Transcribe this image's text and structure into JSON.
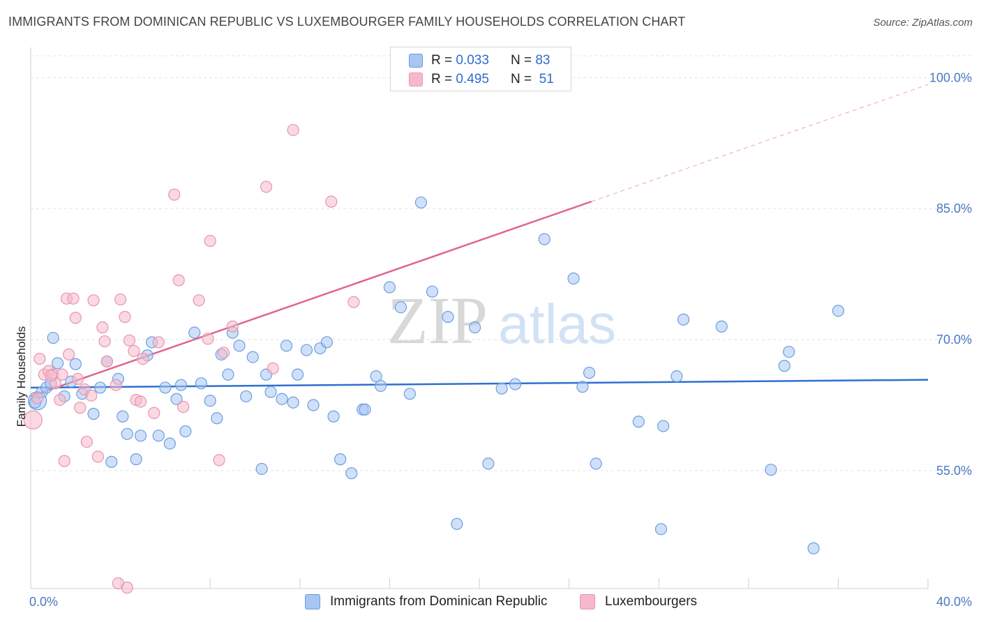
{
  "header": {
    "title": "IMMIGRANTS FROM DOMINICAN REPUBLIC VS LUXEMBOURGER FAMILY HOUSEHOLDS CORRELATION CHART",
    "source": "Source: ZipAtlas.com"
  },
  "watermark": {
    "zip": "ZIP",
    "atlas": "atlas"
  },
  "legend": {
    "rows": [
      {
        "r_label": "R =",
        "r_value": "0.033",
        "n_label": "N =",
        "n_value": "83",
        "color": "#a7c6f2"
      },
      {
        "r_label": "R =",
        "r_value": "0.495",
        "n_label": "N =",
        "n_value": "51",
        "color": "#f6b9cb"
      }
    ]
  },
  "bottom_legend": {
    "series1": "Immigrants from Dominican Republic",
    "series2": "Luxembourgers"
  },
  "colors": {
    "blue_fill": "#a7c6f2",
    "blue_stroke": "#6b9ee0",
    "blue_line": "#2e6fd1",
    "pink_fill": "#f6b9cb",
    "pink_stroke": "#e993ad",
    "pink_line": "#e0648f",
    "tick_color": "#4a78c2",
    "grid": "#e3e3e3"
  },
  "chart_data": {
    "type": "scatter",
    "title": "IMMIGRANTS FROM DOMINICAN REPUBLIC VS LUXEMBOURGER FAMILY HOUSEHOLDS CORRELATION CHART",
    "xlabel": "",
    "ylabel": "Family Households",
    "xlim": [
      0,
      40
    ],
    "ylim": [
      41.5,
      102.5
    ],
    "x_tick_labels": [
      "0.0%",
      "40.0%"
    ],
    "y_ticks": [
      55,
      70,
      85,
      100
    ],
    "y_tick_labels": [
      "55.0%",
      "70.0%",
      "85.0%",
      "100.0%"
    ],
    "grid": true,
    "series": [
      {
        "name": "Immigrants from Dominican Republic",
        "R": 0.033,
        "N": 83,
        "trend": {
          "x0": 0,
          "y0": 64.5,
          "x1": 40,
          "y1": 65.4,
          "dashed_from": null
        },
        "points": [
          [
            0.3,
            63.0
          ],
          [
            0.5,
            64.0
          ],
          [
            0.7,
            64.5
          ],
          [
            0.9,
            65.0
          ],
          [
            1.2,
            67.3
          ],
          [
            1.5,
            63.5
          ],
          [
            1.8,
            65.2
          ],
          [
            2.0,
            67.2
          ],
          [
            2.3,
            63.8
          ],
          [
            2.8,
            61.5
          ],
          [
            3.1,
            64.5
          ],
          [
            3.4,
            67.5
          ],
          [
            3.6,
            56.0
          ],
          [
            3.9,
            65.5
          ],
          [
            4.1,
            61.2
          ],
          [
            4.3,
            59.2
          ],
          [
            4.7,
            56.3
          ],
          [
            4.9,
            59.0
          ],
          [
            5.2,
            68.2
          ],
          [
            5.4,
            69.7
          ],
          [
            5.7,
            59.0
          ],
          [
            6.0,
            64.5
          ],
          [
            6.2,
            58.1
          ],
          [
            6.5,
            63.2
          ],
          [
            6.7,
            64.8
          ],
          [
            6.9,
            59.5
          ],
          [
            7.3,
            70.8
          ],
          [
            7.6,
            65.0
          ],
          [
            8.0,
            63.0
          ],
          [
            8.3,
            61.0
          ],
          [
            8.5,
            68.3
          ],
          [
            8.8,
            66.0
          ],
          [
            9.0,
            70.8
          ],
          [
            9.3,
            69.3
          ],
          [
            9.6,
            63.5
          ],
          [
            9.9,
            68.0
          ],
          [
            10.3,
            55.2
          ],
          [
            10.5,
            66.0
          ],
          [
            10.7,
            64.0
          ],
          [
            11.2,
            63.2
          ],
          [
            11.4,
            69.3
          ],
          [
            11.7,
            62.8
          ],
          [
            11.9,
            66.0
          ],
          [
            12.3,
            68.8
          ],
          [
            12.6,
            62.5
          ],
          [
            12.9,
            69.0
          ],
          [
            13.2,
            69.7
          ],
          [
            13.5,
            61.2
          ],
          [
            13.8,
            56.3
          ],
          [
            14.3,
            54.7
          ],
          [
            14.8,
            62.0
          ],
          [
            14.9,
            62.0
          ],
          [
            15.4,
            65.8
          ],
          [
            15.6,
            64.7
          ],
          [
            16.0,
            76.0
          ],
          [
            16.5,
            73.7
          ],
          [
            16.9,
            63.8
          ],
          [
            17.4,
            85.7
          ],
          [
            17.9,
            75.5
          ],
          [
            18.6,
            72.6
          ],
          [
            19.0,
            48.9
          ],
          [
            19.8,
            71.4
          ],
          [
            20.4,
            55.8
          ],
          [
            21.0,
            64.4
          ],
          [
            21.6,
            64.9
          ],
          [
            22.9,
            81.5
          ],
          [
            24.2,
            77.0
          ],
          [
            24.6,
            64.6
          ],
          [
            24.9,
            66.2
          ],
          [
            25.2,
            55.8
          ],
          [
            27.1,
            60.6
          ],
          [
            28.1,
            48.3
          ],
          [
            28.2,
            60.1
          ],
          [
            28.8,
            65.8
          ],
          [
            29.1,
            72.3
          ],
          [
            30.8,
            71.5
          ],
          [
            33.0,
            55.1
          ],
          [
            33.6,
            67.0
          ],
          [
            33.8,
            68.6
          ],
          [
            34.9,
            46.1
          ],
          [
            36.0,
            73.3
          ],
          [
            0.2,
            62.8
          ],
          [
            1.0,
            70.2
          ]
        ]
      },
      {
        "name": "Luxembourgers",
        "R": 0.495,
        "N": 51,
        "trend": {
          "x0": 0,
          "y0": 63.5,
          "x1": 40,
          "y1": 99.2,
          "dashed_from": 25.0
        },
        "points": [
          [
            0.1,
            60.8
          ],
          [
            0.3,
            63.3
          ],
          [
            0.4,
            67.8
          ],
          [
            0.6,
            66.0
          ],
          [
            0.8,
            66.4
          ],
          [
            1.0,
            66.0
          ],
          [
            1.1,
            65.0
          ],
          [
            1.3,
            63.1
          ],
          [
            1.5,
            56.1
          ],
          [
            1.6,
            74.7
          ],
          [
            1.7,
            68.3
          ],
          [
            1.9,
            74.7
          ],
          [
            2.0,
            72.5
          ],
          [
            2.2,
            62.2
          ],
          [
            2.4,
            64.3
          ],
          [
            2.5,
            58.3
          ],
          [
            2.7,
            63.6
          ],
          [
            2.8,
            74.5
          ],
          [
            3.0,
            56.6
          ],
          [
            3.2,
            71.4
          ],
          [
            3.3,
            69.8
          ],
          [
            3.4,
            67.5
          ],
          [
            3.8,
            64.8
          ],
          [
            3.9,
            42.1
          ],
          [
            4.0,
            74.6
          ],
          [
            4.2,
            72.6
          ],
          [
            4.3,
            41.6
          ],
          [
            4.4,
            69.9
          ],
          [
            4.6,
            68.7
          ],
          [
            4.7,
            63.1
          ],
          [
            4.9,
            62.9
          ],
          [
            5.0,
            67.8
          ],
          [
            5.5,
            61.6
          ],
          [
            5.7,
            69.7
          ],
          [
            6.4,
            86.6
          ],
          [
            6.6,
            76.8
          ],
          [
            6.8,
            62.3
          ],
          [
            7.5,
            74.5
          ],
          [
            7.9,
            70.1
          ],
          [
            8.0,
            81.3
          ],
          [
            8.4,
            56.2
          ],
          [
            8.6,
            68.5
          ],
          [
            9.0,
            71.5
          ],
          [
            10.5,
            87.5
          ],
          [
            10.8,
            66.7
          ],
          [
            11.7,
            94.0
          ],
          [
            13.4,
            85.8
          ],
          [
            14.4,
            74.3
          ],
          [
            2.1,
            65.5
          ],
          [
            0.9,
            65.9
          ],
          [
            1.4,
            66.0
          ]
        ]
      }
    ]
  }
}
